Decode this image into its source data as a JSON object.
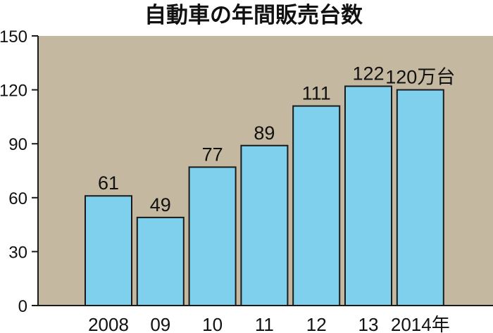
{
  "chart_data": {
    "type": "bar",
    "title": "自動車の年間販売台数",
    "categories": [
      "2008",
      "09",
      "10",
      "11",
      "12",
      "13",
      "2014年"
    ],
    "values": [
      61,
      49,
      77,
      89,
      111,
      122,
      120
    ],
    "value_labels": [
      "61",
      "49",
      "77",
      "89",
      "111",
      "122",
      "120万台"
    ],
    "ylim": [
      0,
      150
    ],
    "yticks": [
      0,
      30,
      60,
      90,
      120,
      150
    ],
    "ytick_labels": [
      "0",
      "30",
      "60",
      "90",
      "120",
      "150"
    ],
    "grid": false,
    "colors": {
      "plot_background": "#c4b8a1",
      "bar_fill": "#7ed0ec",
      "bar_stroke": "#1a1a1a",
      "axis": "#1a1a1a"
    }
  }
}
